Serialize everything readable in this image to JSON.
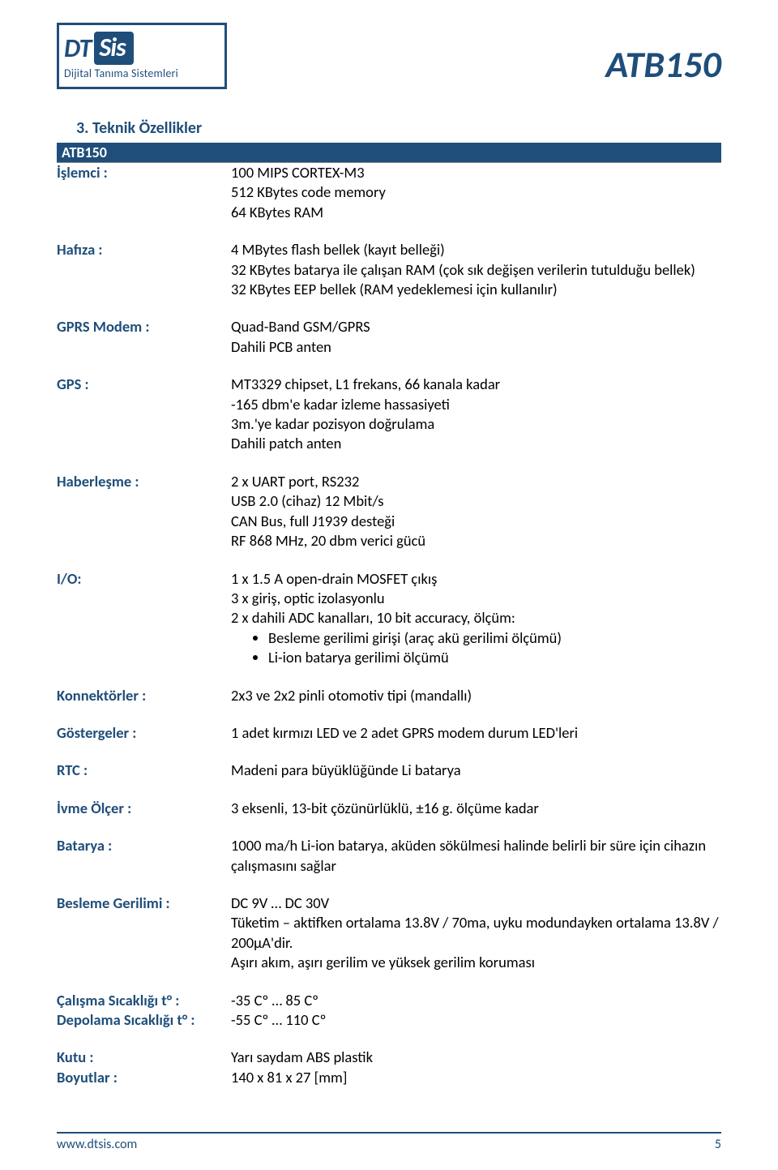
{
  "header": {
    "logo_dt": "DT",
    "logo_sis": "Sis",
    "logo_sub": "Dijital Tanıma Sistemleri",
    "doc_title": "ATB150"
  },
  "section": {
    "number_title": "3.  Teknik Özellikler",
    "banner": "ATB150"
  },
  "specs": {
    "islemci": {
      "label": "İşlemci :",
      "l1": "100 MIPS CORTEX-M3",
      "l2": "512 KBytes code memory",
      "l3": "64 KBytes RAM"
    },
    "hafiza": {
      "label": "Hafıza :",
      "l1": "4 MBytes flash bellek (kayıt belleği)",
      "l2": "32 KBytes batarya ile çalışan RAM (çok sık değişen verilerin tutulduğu bellek)",
      "l3": "32 KBytes EEP bellek (RAM yedeklemesi için kullanılır)"
    },
    "gprs": {
      "label": "GPRS Modem :",
      "l1": "Quad-Band GSM/GPRS",
      "l2": "Dahili PCB anten"
    },
    "gps": {
      "label": "GPS :",
      "l1": "MT3329 chipset, L1 frekans, 66 kanala kadar",
      "l2": "-165 dbm'e kadar izleme hassasiyeti",
      "l3": "3m.'ye kadar pozisyon doğrulama",
      "l4": "Dahili patch anten"
    },
    "haberlesme": {
      "label": "Haberleşme :",
      "l1": "2 x UART port, RS232",
      "l2": "USB 2.0 (cihaz) 12 Mbit/s",
      "l3": "CAN Bus, full J1939 desteği",
      "l4": "RF 868 MHz, 20 dbm verici gücü"
    },
    "io": {
      "label": "I/O:",
      "l1": "1 x 1.5 A open-drain MOSFET çıkış",
      "l2": "3 x giriş, optic izolasyonlu",
      "l3": "2 x dahili ADC kanalları, 10 bit accuracy, ölçüm:",
      "b1": "Besleme gerilimi girişi (araç akü gerilimi ölçümü)",
      "b2": "Li-ion batarya gerilimi ölçümü"
    },
    "konnektor": {
      "label": "Konnektörler :",
      "l1": "2x3 ve 2x2 pinli otomotiv tipi (mandallı)"
    },
    "gostergeler": {
      "label": "Göstergeler :",
      "l1": "1 adet kırmızı LED ve 2 adet GPRS modem durum LED'leri"
    },
    "rtc": {
      "label": "RTC :",
      "l1": "Madeni para büyüklüğünde Li batarya"
    },
    "ivme": {
      "label": "İvme Ölçer :",
      "l1": "3 eksenli,  13-bit çözünürlüklü, ±16 g. ölçüme kadar"
    },
    "batarya": {
      "label": "Batarya :",
      "l1": "1000 ma/h Li-ion batarya, aküden sökülmesi halinde belirli bir süre için cihazın çalışmasını sağlar"
    },
    "besleme": {
      "label": "Besleme Gerilimi :",
      "l1": "DC 9V … DC 30V",
      "l2": "Tüketim – aktifken ortalama 13.8V / 70ma, uyku modundayken ortalama 13.8V / 200µA'dir.",
      "l3": "Aşırı akım, aşırı gerilim ve yüksek gerilim koruması"
    },
    "calisma": {
      "label": "Çalışma Sıcaklığı t° :",
      "l1": "-35 Cº …  85 Cº"
    },
    "depolama": {
      "label": "Depolama Sıcaklığı t° :",
      "l1": "-55 Cº … 110 Cº"
    },
    "kutu": {
      "label": "Kutu :",
      "l1": "Yarı saydam ABS plastik"
    },
    "boyutlar": {
      "label": "Boyutlar :",
      "l1": "140 x 81 x 27 [mm]"
    }
  },
  "footer": {
    "url": "www.dtsis.com",
    "page": "5"
  },
  "colors": {
    "brand": "#1f4e7a"
  }
}
